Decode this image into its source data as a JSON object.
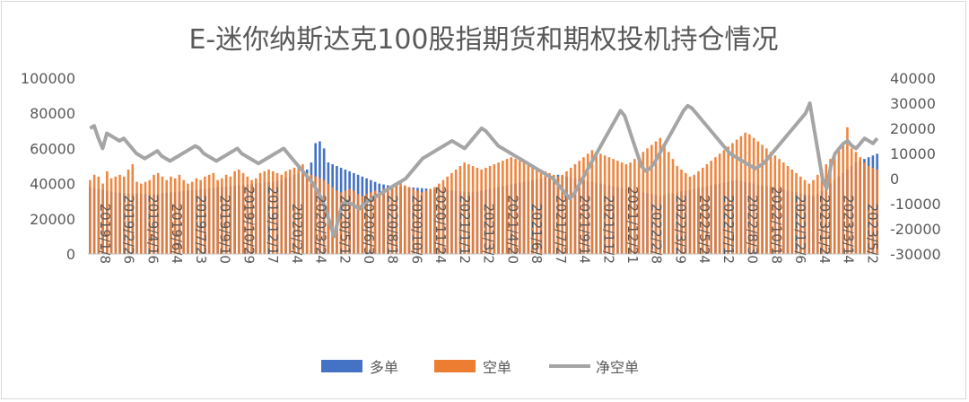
{
  "chart_data": {
    "type": "bar",
    "title": "E-迷你纳斯达克100股指期货和期权投机持仓情况",
    "xlabel": "",
    "ylabel": "",
    "ylim": [
      0,
      100000
    ],
    "y2lim": [
      -30000,
      40000
    ],
    "y_ticks": [
      "100000",
      "80000",
      "60000",
      "40000",
      "20000",
      "0"
    ],
    "y2_ticks": [
      "40000",
      "30000",
      "20000",
      "10000",
      "0",
      "-10000",
      "-20000",
      "-30000"
    ],
    "grid": false,
    "legend_position": "bottom",
    "x_tick_labels": [
      "2019/1/8",
      "2019/2/26",
      "2019/4/16",
      "2019/6/4",
      "2019/7/23",
      "2019/9/10",
      "2019/10/29",
      "2019/12/17",
      "2020/2/4",
      "2020/3/24",
      "2020/5/12",
      "2020/6/30",
      "2020/8/18",
      "2020/10/6",
      "2020/11/24",
      "2021/1/12",
      "2021/3/2",
      "2021/4/20",
      "2021/6/8",
      "2021/7/27",
      "2021/9/14",
      "2021/11/2",
      "2021/12/21",
      "2022/2/8",
      "2022/3/29",
      "2022/5/24",
      "2022/7/12",
      "2022/8/30",
      "2022/10/18",
      "2022/12/6",
      "2023/1/24",
      "2023/3/14",
      "2023/5/2"
    ],
    "series": [
      {
        "name": "多单",
        "type": "bar",
        "axis": "left",
        "color": "#4472C4",
        "values": [
          38000,
          37500,
          37000,
          36500,
          36000,
          35500,
          35000,
          34800,
          34600,
          34500,
          34400,
          34300,
          34200,
          34100,
          34000,
          34000,
          34200,
          34500,
          34800,
          35000,
          35200,
          35500,
          35800,
          36000,
          36300,
          36500,
          36800,
          37000,
          37200,
          37500,
          37800,
          38000,
          38300,
          38500,
          38800,
          39000,
          39300,
          39500,
          39800,
          40000,
          40300,
          40500,
          40800,
          41000,
          41500,
          42000,
          43000,
          44000,
          45000,
          46000,
          47000,
          48000,
          52000,
          63000,
          64000,
          60000,
          52000,
          51000,
          50000,
          49000,
          48000,
          47000,
          46000,
          45000,
          44000,
          43000,
          42000,
          41000,
          40000,
          39500,
          39000,
          38800,
          38600,
          38400,
          38200,
          38000,
          37800,
          37600,
          37400,
          37200,
          37000,
          36800,
          36600,
          36400,
          36200,
          36000,
          35800,
          35600,
          35400,
          35200,
          35000,
          35500,
          36000,
          36500,
          37000,
          37500,
          38000,
          38500,
          39000,
          39500,
          40000,
          40500,
          41000,
          41500,
          42000,
          42500,
          43000,
          43500,
          44000,
          44500,
          45000,
          44500,
          44000,
          43500,
          43000,
          42500,
          42000,
          41500,
          41000,
          40500,
          40000,
          39500,
          39000,
          38500,
          38000,
          37500,
          37000,
          36500,
          36000,
          35500,
          35000,
          34500,
          34000,
          33500,
          33000,
          33500,
          34000,
          34500,
          35000,
          35500,
          36000,
          36500,
          37000,
          37500,
          38000,
          38500,
          39000,
          39500,
          40000,
          40500,
          41000,
          41500,
          42000,
          41500,
          41000,
          40500,
          40000,
          39500,
          39000,
          38500,
          38000,
          37500,
          37000,
          36500,
          36000,
          35500,
          35000,
          34500,
          34000,
          33500,
          33000,
          34000,
          36000,
          38000,
          40000,
          42000,
          44000,
          46000,
          48000,
          50000,
          52000,
          53000,
          54000,
          55000,
          56000,
          57000
        ]
      },
      {
        "name": "空单",
        "type": "bar",
        "axis": "left",
        "color": "#ED7D31",
        "values": [
          42000,
          45000,
          44000,
          40000,
          47000,
          43000,
          44000,
          45000,
          44000,
          48000,
          51000,
          41000,
          40000,
          41000,
          42000,
          45000,
          46000,
          44000,
          42000,
          44000,
          43000,
          45000,
          42000,
          40000,
          41000,
          43000,
          42000,
          44000,
          45000,
          46000,
          42000,
          43000,
          45000,
          44000,
          47000,
          48000,
          46000,
          44000,
          42000,
          43000,
          46000,
          47000,
          48000,
          47000,
          46000,
          45000,
          47000,
          48000,
          49000,
          50000,
          51000,
          46000,
          45000,
          44000,
          43000,
          42000,
          40000,
          38000,
          36000,
          35000,
          36000,
          37000,
          36000,
          34000,
          33000,
          34000,
          35000,
          36000,
          35000,
          37000,
          38000,
          39000,
          40000,
          41000,
          39000,
          38000,
          37000,
          36000,
          35000,
          36000,
          37000,
          38000,
          40000,
          42000,
          44000,
          46000,
          48000,
          50000,
          52000,
          51000,
          50000,
          49000,
          48000,
          49000,
          50000,
          51000,
          52000,
          53000,
          54000,
          55000,
          54000,
          53000,
          52000,
          51000,
          50000,
          49000,
          48000,
          47000,
          46000,
          45000,
          44000,
          45000,
          47000,
          49000,
          51000,
          53000,
          55000,
          57000,
          59000,
          58000,
          57000,
          56000,
          55000,
          54000,
          53000,
          52000,
          51000,
          52000,
          54000,
          56000,
          58000,
          60000,
          62000,
          64000,
          66000,
          62000,
          58000,
          54000,
          50000,
          48000,
          46000,
          44000,
          45000,
          47000,
          49000,
          51000,
          53000,
          55000,
          57000,
          59000,
          61000,
          63000,
          65000,
          67000,
          69000,
          68000,
          66000,
          64000,
          62000,
          60000,
          58000,
          56000,
          54000,
          52000,
          50000,
          48000,
          46000,
          44000,
          42000,
          40000,
          42000,
          45000,
          48000,
          51000,
          54000,
          57000,
          60000,
          63000,
          72000,
          60000,
          58000,
          55000,
          52000,
          50000,
          49000,
          48000,
          50000,
          52000,
          54000,
          56000
        ]
      },
      {
        "name": "净空单",
        "type": "line",
        "axis": "right",
        "color": "#A5A5A5",
        "values": [
          20000,
          21000,
          16000,
          12000,
          18000,
          17000,
          16000,
          15000,
          16000,
          14000,
          12000,
          10000,
          9000,
          8000,
          9000,
          10000,
          11000,
          9000,
          8000,
          7000,
          8000,
          9000,
          10000,
          11000,
          12000,
          13000,
          12000,
          10000,
          9000,
          8000,
          7000,
          8000,
          9000,
          10000,
          11000,
          12000,
          10000,
          9000,
          8000,
          7000,
          6000,
          7000,
          8000,
          9000,
          10000,
          11000,
          12000,
          10000,
          8000,
          6000,
          4000,
          2000,
          0,
          -2000,
          -5000,
          -8000,
          -12000,
          -18000,
          -23000,
          -16000,
          -10000,
          -9000,
          -10000,
          -11000,
          -12000,
          -10000,
          -9000,
          -8000,
          -7000,
          -6000,
          -5000,
          -4000,
          -3000,
          -2000,
          -1000,
          0,
          2000,
          4000,
          6000,
          8000,
          9000,
          10000,
          11000,
          12000,
          13000,
          14000,
          15000,
          14000,
          13000,
          12000,
          14000,
          16000,
          18000,
          20000,
          19000,
          17000,
          15000,
          13000,
          12000,
          11000,
          10000,
          9000,
          8000,
          7000,
          6000,
          5000,
          4000,
          3000,
          2000,
          1000,
          0,
          -2000,
          -4000,
          -6000,
          -8000,
          -6000,
          -3000,
          0,
          3000,
          6000,
          9000,
          12000,
          15000,
          18000,
          21000,
          24000,
          27000,
          25000,
          20000,
          15000,
          10000,
          5000,
          3000,
          4000,
          6000,
          9000,
          12000,
          15000,
          18000,
          21000,
          24000,
          27000,
          29000,
          28000,
          26000,
          24000,
          22000,
          20000,
          18000,
          16000,
          14000,
          12000,
          10000,
          9000,
          8000,
          7000,
          6000,
          5000,
          4000,
          5000,
          6000,
          8000,
          10000,
          12000,
          14000,
          16000,
          18000,
          20000,
          22000,
          24000,
          26000,
          30000,
          20000,
          10000,
          0,
          -4000,
          5000,
          10000,
          12000,
          14000,
          15000,
          13000,
          12000,
          14000,
          16000,
          15000,
          14000,
          16000
        ]
      }
    ]
  }
}
